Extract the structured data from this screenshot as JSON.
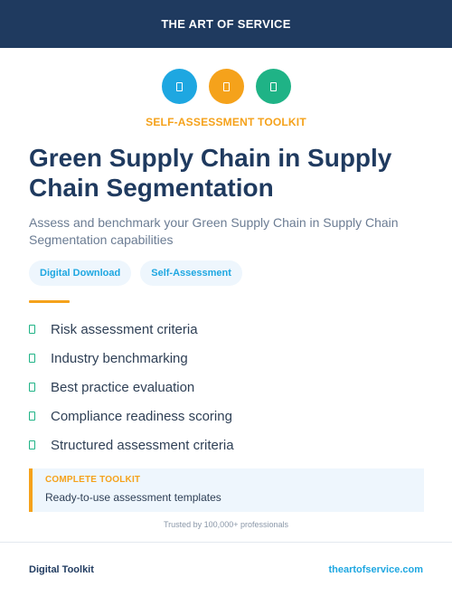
{
  "header": {
    "brand": "THE ART OF SERVICE"
  },
  "icons": [
    {
      "name": "document-icon",
      "color": "#1ea7e1"
    },
    {
      "name": "document-icon",
      "color": "#f5a21b"
    },
    {
      "name": "document-icon",
      "color": "#1fb386"
    }
  ],
  "kicker": "SELF-ASSESSMENT TOOLKIT",
  "title": "Green Supply Chain in Supply Chain Segmentation",
  "subtitle": "Assess and benchmark your Green Supply Chain in Supply Chain Segmentation capabilities",
  "tags": [
    "Digital Download",
    "Self-Assessment"
  ],
  "features": [
    "Risk assessment criteria",
    "Industry benchmarking",
    "Best practice evaluation",
    "Compliance readiness scoring",
    "Structured assessment criteria"
  ],
  "callout": {
    "title": "COMPLETE TOOLKIT",
    "text": "Ready-to-use assessment templates"
  },
  "trust": "Trusted by 100,000+ professionals",
  "footer": {
    "left": "Digital Toolkit",
    "right": "theartofservice.com"
  },
  "colors": {
    "navy": "#1f3a5f",
    "blue": "#1ea7e1",
    "orange": "#f5a21b",
    "green": "#1fb386",
    "tag_bg": "#eef6fd",
    "callout_bg": "#eef6fd"
  }
}
